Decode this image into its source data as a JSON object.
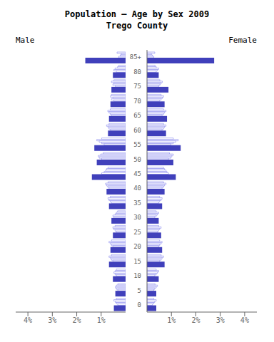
{
  "chart_data": {
    "type": "bar",
    "orientation": "horizontal",
    "title": "Population — Age by Sex 2009",
    "subtitle": "Trego County",
    "categories": [
      "85+",
      "80",
      "75",
      "70",
      "65",
      "60",
      "55",
      "50",
      "45",
      "40",
      "35",
      "30",
      "25",
      "20",
      "15",
      "10",
      "5",
      "0"
    ],
    "xlim": [
      0,
      4.5
    ],
    "xticks": [
      {
        "value": 1,
        "label": "1%"
      },
      {
        "value": 2,
        "label": "2%"
      },
      {
        "value": 3,
        "label": "3%"
      },
      {
        "value": 4,
        "label": "4%"
      }
    ],
    "series": [
      {
        "name": "Male",
        "color": "#4040bb",
        "outline_color": "#8888ee",
        "values": [
          1.65,
          0.52,
          0.58,
          0.62,
          0.68,
          0.72,
          1.28,
          1.18,
          1.38,
          0.78,
          0.68,
          0.58,
          0.52,
          0.62,
          0.68,
          0.52,
          0.42,
          0.48
        ],
        "outlines": [
          [
            0.28,
            0.22,
            0.18,
            0.35
          ],
          [
            0.38,
            0.48,
            0.43,
            0.33,
            0.28
          ],
          [
            0.42,
            0.52,
            0.48,
            0.58,
            0.48
          ],
          [
            0.48,
            0.58,
            0.52,
            0.62,
            0.58
          ],
          [
            0.58,
            0.63,
            0.68,
            0.73,
            0.63
          ],
          [
            0.62,
            0.68,
            0.72,
            0.78,
            0.68
          ],
          [
            0.88,
            0.98,
            1.08,
            1.18,
            0.98
          ],
          [
            0.98,
            1.08,
            1.12,
            1.02,
            0.92
          ],
          [
            0.98,
            0.88,
            0.82,
            0.78,
            0.72
          ],
          [
            0.68,
            0.73,
            0.78,
            0.82,
            0.72
          ],
          [
            0.58,
            0.63,
            0.68,
            0.72,
            0.63
          ],
          [
            0.48,
            0.52,
            0.43,
            0.38,
            0.33
          ],
          [
            0.38,
            0.43,
            0.48,
            0.52,
            0.43
          ],
          [
            0.52,
            0.58,
            0.62,
            0.68,
            0.58
          ],
          [
            0.52,
            0.58,
            0.62,
            0.68,
            0.58
          ],
          [
            0.38,
            0.43,
            0.48,
            0.43,
            0.38
          ],
          [
            0.32,
            0.38,
            0.42,
            0.38,
            0.32
          ],
          [
            0.32,
            0.38,
            0.42,
            0.48,
            0.38
          ]
        ]
      },
      {
        "name": "Female",
        "color": "#4040bb",
        "outline_color": "#8888ee",
        "values": [
          2.75,
          0.48,
          0.88,
          0.72,
          0.82,
          0.78,
          1.38,
          1.08,
          1.18,
          0.72,
          0.62,
          0.48,
          0.58,
          0.62,
          0.72,
          0.48,
          0.38,
          0.38
        ],
        "outlines": [
          [
            0.28,
            0.22,
            0.18,
            0.32
          ],
          [
            0.38,
            0.43,
            0.48,
            0.38,
            0.33
          ],
          [
            0.48,
            0.53,
            0.58,
            0.63,
            0.53
          ],
          [
            0.52,
            0.58,
            0.63,
            0.68,
            0.58
          ],
          [
            0.62,
            0.68,
            0.72,
            0.78,
            0.68
          ],
          [
            0.62,
            0.68,
            0.72,
            0.78,
            0.68
          ],
          [
            0.98,
            1.08,
            1.18,
            1.28,
            1.08
          ],
          [
            0.88,
            0.98,
            1.02,
            1.08,
            0.92
          ],
          [
            0.88,
            0.82,
            0.78,
            0.72,
            0.68
          ],
          [
            0.62,
            0.68,
            0.72,
            0.78,
            0.68
          ],
          [
            0.48,
            0.52,
            0.58,
            0.62,
            0.52
          ],
          [
            0.32,
            0.38,
            0.43,
            0.48,
            0.38
          ],
          [
            0.43,
            0.48,
            0.52,
            0.58,
            0.48
          ],
          [
            0.48,
            0.52,
            0.58,
            0.62,
            0.52
          ],
          [
            0.52,
            0.58,
            0.62,
            0.68,
            0.58
          ],
          [
            0.32,
            0.38,
            0.43,
            0.48,
            0.38
          ],
          [
            0.28,
            0.32,
            0.38,
            0.43,
            0.33
          ],
          [
            0.22,
            0.28,
            0.32,
            0.38,
            0.28
          ]
        ]
      }
    ]
  }
}
